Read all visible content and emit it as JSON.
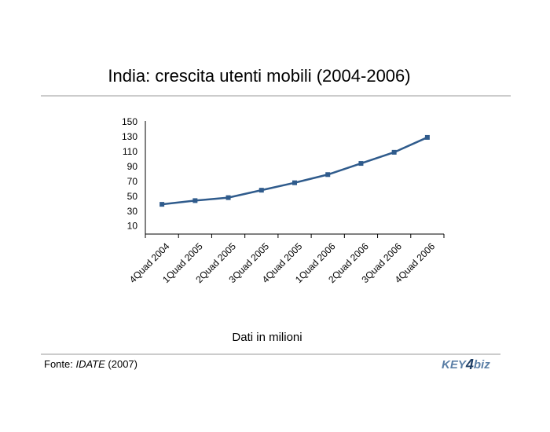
{
  "chart_data": {
    "type": "line",
    "title": "India: crescita utenti mobili (2004-2006)",
    "subtitle": "Dati in milioni",
    "categories": [
      "4Quad 2004",
      "1Quad 2005",
      "2Quad 2005",
      "3Quad 2005",
      "4Quad 2005",
      "1Quad 2006",
      "2Quad 2006",
      "3Quad 2006",
      "4Quad 2006"
    ],
    "series": [
      {
        "name": null,
        "color": "#2f5b8c",
        "values": [
          40,
          45,
          49,
          59,
          69,
          80,
          95,
          110,
          130
        ]
      }
    ],
    "ylim": [
      0,
      150
    ],
    "yticks": [
      10,
      30,
      50,
      70,
      90,
      110,
      130,
      150
    ],
    "grid": false,
    "source": {
      "prefix": "Fonte: ",
      "name": "IDATE",
      "year": " (2007)"
    },
    "logo": {
      "left": "KEY",
      "mid": "4",
      "right": "biz"
    }
  }
}
